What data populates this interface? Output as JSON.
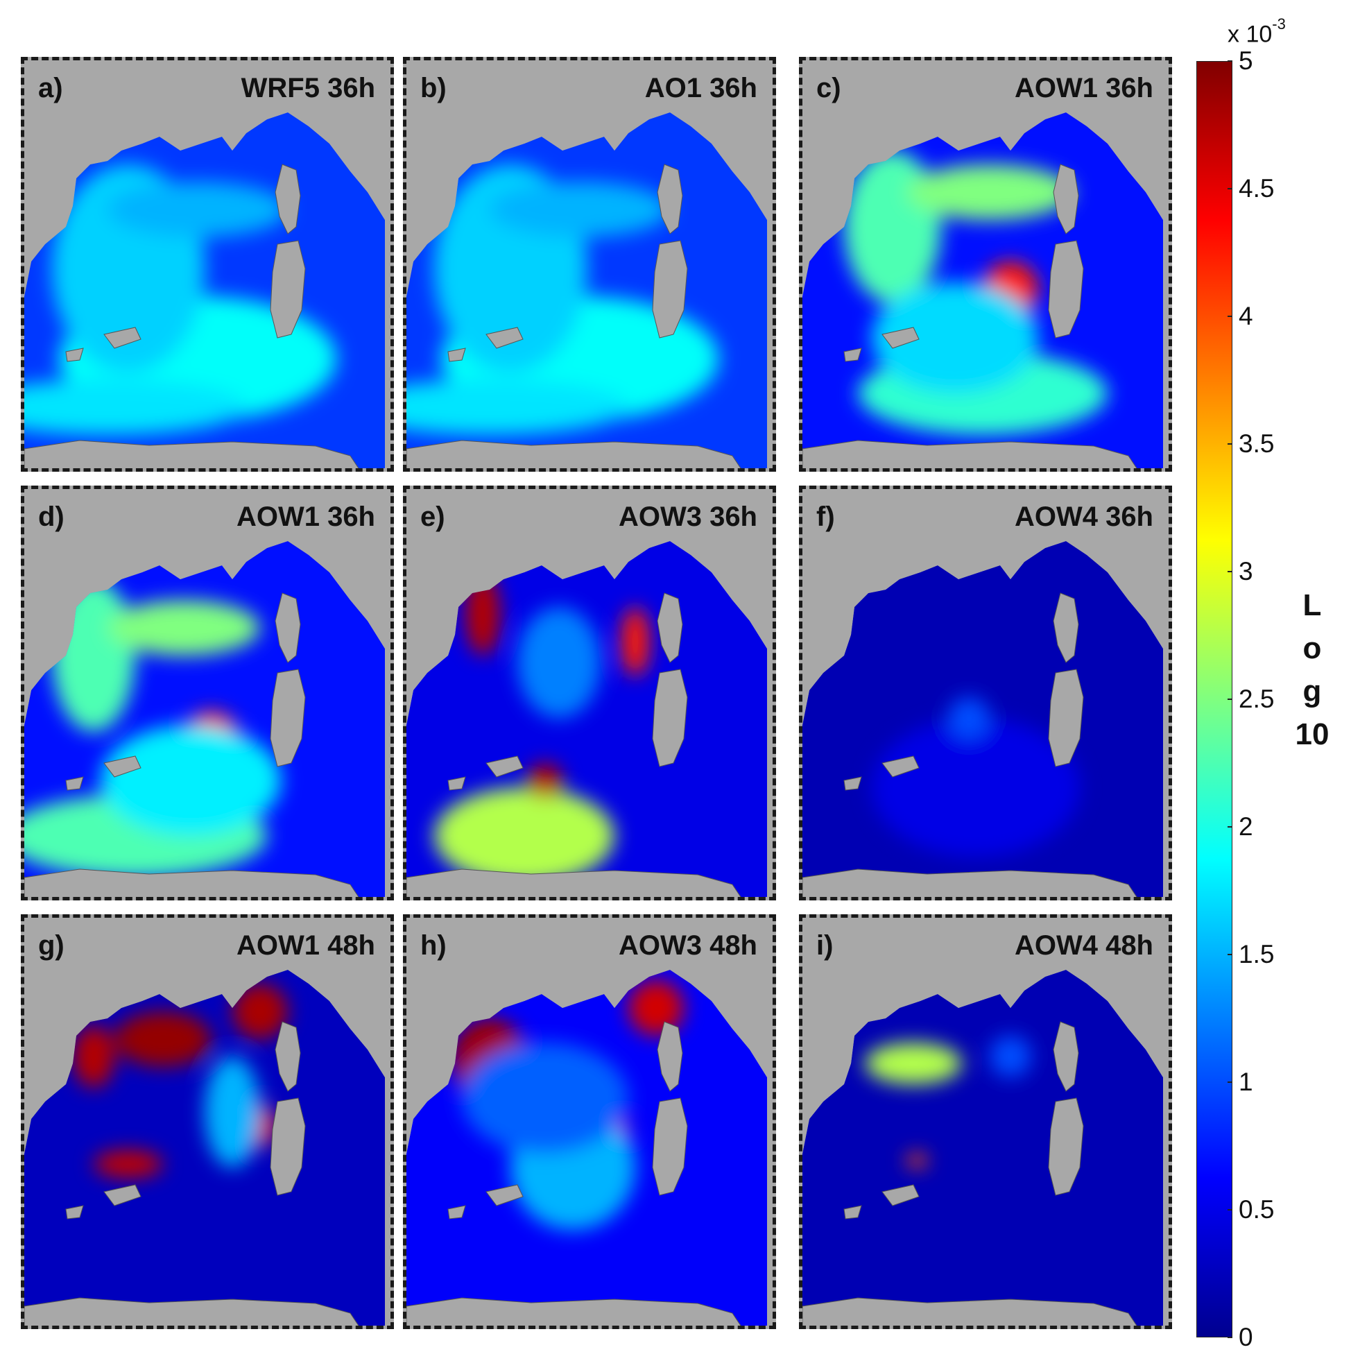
{
  "chart_data": {
    "type": "heatmap",
    "panels": [
      {
        "label": "a)",
        "title": "WRF5 36h"
      },
      {
        "label": "b)",
        "title": "AO1 36h"
      },
      {
        "label": "c)",
        "title": "AOW1 36h"
      },
      {
        "label": "d)",
        "title": "AOW1 36h"
      },
      {
        "label": "e)",
        "title": "AOW3 36h"
      },
      {
        "label": "f)",
        "title": "AOW4 36h"
      },
      {
        "label": "g)",
        "title": "AOW1 48h"
      },
      {
        "label": "h)",
        "title": "AOW3 48h"
      },
      {
        "label": "i)",
        "title": "AOW4 48h"
      }
    ],
    "colorbar": {
      "range": [
        0,
        5
      ],
      "multiplier_base": "x 10",
      "multiplier_exp": "-3",
      "ticks": [
        "0",
        "0.5",
        "1",
        "1.5",
        "2",
        "2.5",
        "3",
        "3.5",
        "4",
        "4.5",
        "5"
      ],
      "label_letters": [
        "L",
        "o",
        "g",
        "10"
      ],
      "colormap": "jet"
    },
    "land_color": "#a8a8a8",
    "grid": false
  }
}
